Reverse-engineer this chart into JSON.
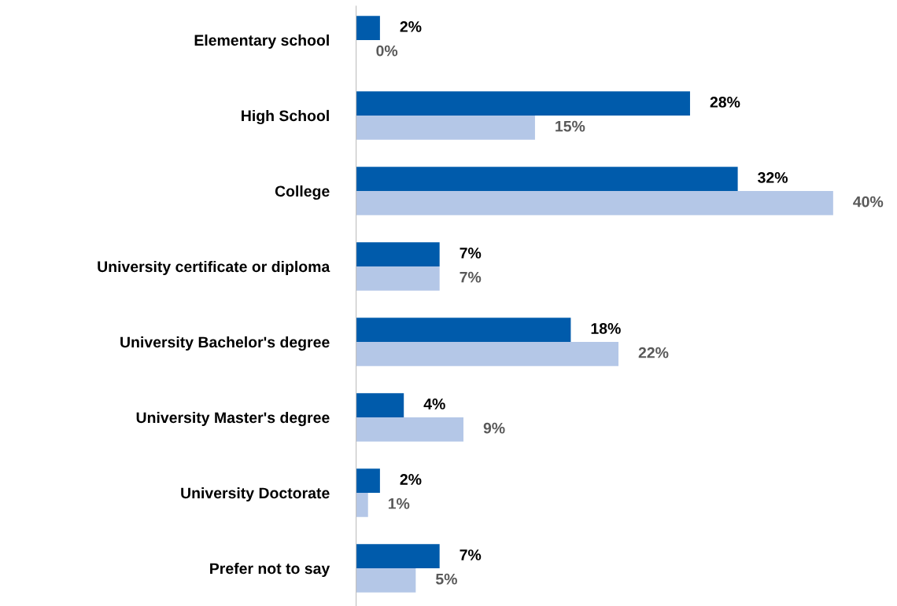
{
  "chart_data": {
    "type": "bar",
    "orientation": "horizontal",
    "categories": [
      "Elementary school",
      "High School",
      "College",
      "University certificate or diploma",
      "University Bachelor's degree",
      "University Master's degree",
      "University Doctorate",
      "Prefer not to say"
    ],
    "series": [
      {
        "color": "#005bab",
        "values": [
          2,
          28,
          32,
          7,
          18,
          4,
          2,
          7
        ],
        "value_labels": [
          "2%",
          "28%",
          "32%",
          "7%",
          "18%",
          "4%",
          "2%",
          "7%"
        ]
      },
      {
        "color": "#b4c7e7",
        "values": [
          0,
          15,
          40,
          7,
          22,
          9,
          1,
          5
        ],
        "value_labels": [
          "0%",
          "15%",
          "40%",
          "7%",
          "22%",
          "9%",
          "1%",
          "5%"
        ]
      }
    ],
    "grid": false,
    "legend": false,
    "tick_labels": "y"
  }
}
